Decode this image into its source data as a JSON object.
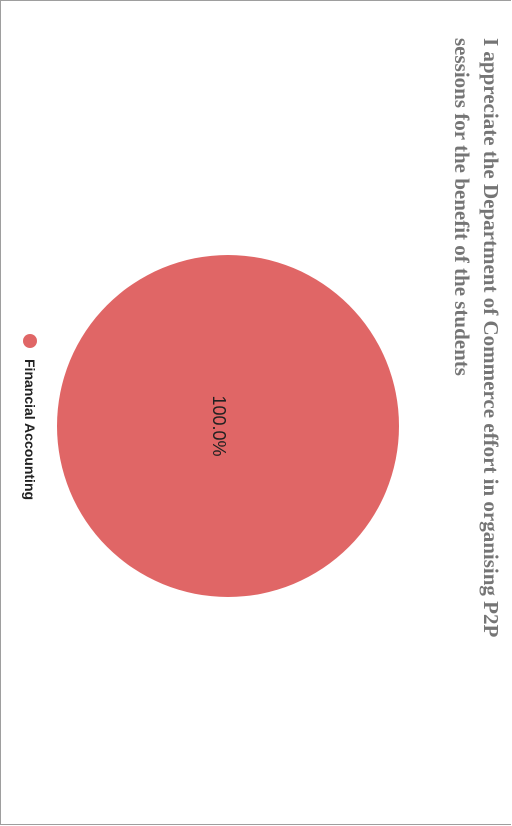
{
  "chart_data": {
    "type": "pie",
    "title_lines": [
      "I appreciate the Department of Commerce effort in organising P2P",
      "sessions for the benefit of the students"
    ],
    "slices": [
      {
        "label": "Financial Accounting",
        "value": 100.0,
        "display": "100.0%",
        "color": "#e06666"
      }
    ],
    "legend": {
      "position": "left",
      "entries": [
        "Financial Accounting"
      ]
    }
  }
}
